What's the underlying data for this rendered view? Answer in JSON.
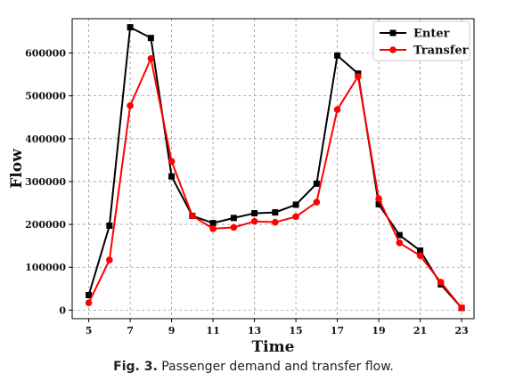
{
  "chart_data": {
    "type": "line",
    "xlabel": "Time",
    "ylabel": "Flow",
    "x": [
      5,
      6,
      7,
      8,
      9,
      10,
      11,
      12,
      13,
      14,
      15,
      16,
      17,
      18,
      19,
      20,
      21,
      22,
      23
    ],
    "x_ticks": [
      5,
      7,
      9,
      11,
      13,
      15,
      17,
      19,
      21,
      23
    ],
    "xlim": [
      4.2,
      23.6
    ],
    "ylim": [
      -20000,
      680000
    ],
    "y_ticks": [
      0,
      100000,
      200000,
      300000,
      400000,
      500000,
      600000
    ],
    "grid": true,
    "legend_position": "top-right",
    "series": [
      {
        "name": "Enter",
        "color": "#000000",
        "marker": "square",
        "values": [
          35000,
          197000,
          660000,
          635000,
          312000,
          220000,
          203000,
          215000,
          226000,
          228000,
          246000,
          295000,
          594000,
          552000,
          247000,
          175000,
          139000,
          60000,
          5000
        ]
      },
      {
        "name": "Transfer",
        "color": "#ff0000",
        "marker": "circle",
        "values": [
          17000,
          117000,
          477000,
          587000,
          347000,
          220000,
          190000,
          193000,
          207000,
          205000,
          218000,
          252000,
          468000,
          545000,
          260000,
          157000,
          127000,
          65000,
          5000
        ]
      }
    ]
  },
  "caption": {
    "label": "Fig. 3.",
    "text": "Passenger demand and transfer flow."
  }
}
